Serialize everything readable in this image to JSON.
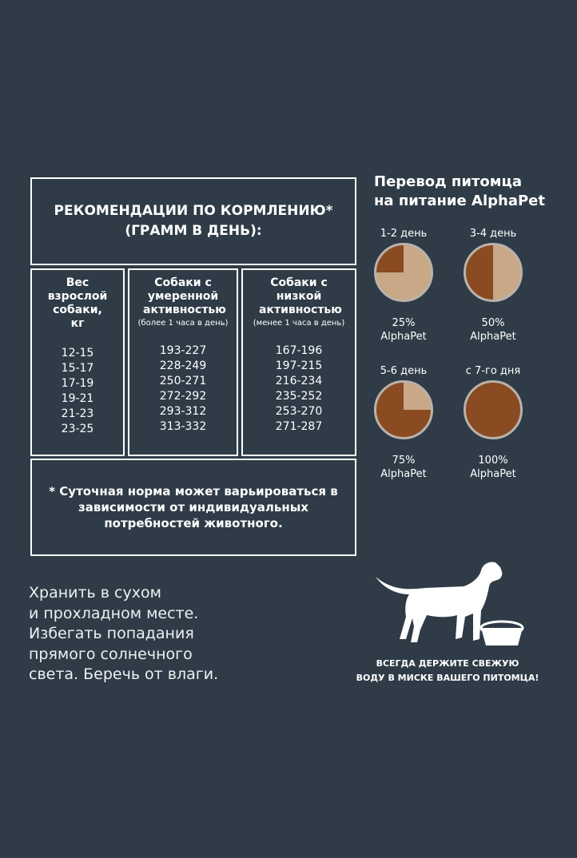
{
  "table": {
    "title": "РЕКОМЕНДАЦИИ ПО КОРМЛЕНИЮ*",
    "subtitle": "(ГРАММ В ДЕНЬ):",
    "columns": [
      {
        "header": "Вес взрослой собаки, кг",
        "note": ""
      },
      {
        "header": "Собаки с умеренной активностью",
        "note": "(более 1 часа в день)"
      },
      {
        "header": "Собаки с низкой активностью",
        "note": "(менее 1 часа в день)"
      }
    ],
    "rows": [
      [
        "12-15",
        "193-227",
        "167-196"
      ],
      [
        "15-17",
        "228-249",
        "197-215"
      ],
      [
        "17-19",
        "250-271",
        "216-234"
      ],
      [
        "19-21",
        "272-292",
        "235-252"
      ],
      [
        "21-23",
        "293-312",
        "253-270"
      ],
      [
        "23-25",
        "313-332",
        "271-287"
      ]
    ],
    "footnote": "* Суточная норма может варьироваться в зависимости от индивидуальных потребностей животного."
  },
  "storage": [
    "Хранить в сухом",
    "и прохладном месте.",
    "Избегать попадания",
    "прямого солнечного",
    "света. Беречь от влаги."
  ],
  "transition": {
    "title_line1": "Перевод питомца",
    "title_line2": "на питание",
    "brand": "AlphaPet",
    "steps": [
      {
        "day": "1-2 день",
        "percent": "25%",
        "label": "AlphaPet",
        "fraction": 0.25
      },
      {
        "day": "3-4 день",
        "percent": "50%",
        "label": "AlphaPet",
        "fraction": 0.5
      },
      {
        "day": "5-6 день",
        "percent": "75%",
        "label": "AlphaPet",
        "fraction": 0.75
      },
      {
        "day": "с 7-го дня",
        "percent": "100%",
        "label": "AlphaPet",
        "fraction": 1.0
      }
    ]
  },
  "water": {
    "line1": "ВСЕГДА ДЕРЖИТЕ СВЕЖУЮ",
    "line2": "ВОДУ В МИСКЕ ВАШЕГО ПИТОМЦА!"
  },
  "colors": {
    "background": "#2f3c47",
    "new_food": "#8a4a22",
    "old_food": "#c9a887"
  }
}
